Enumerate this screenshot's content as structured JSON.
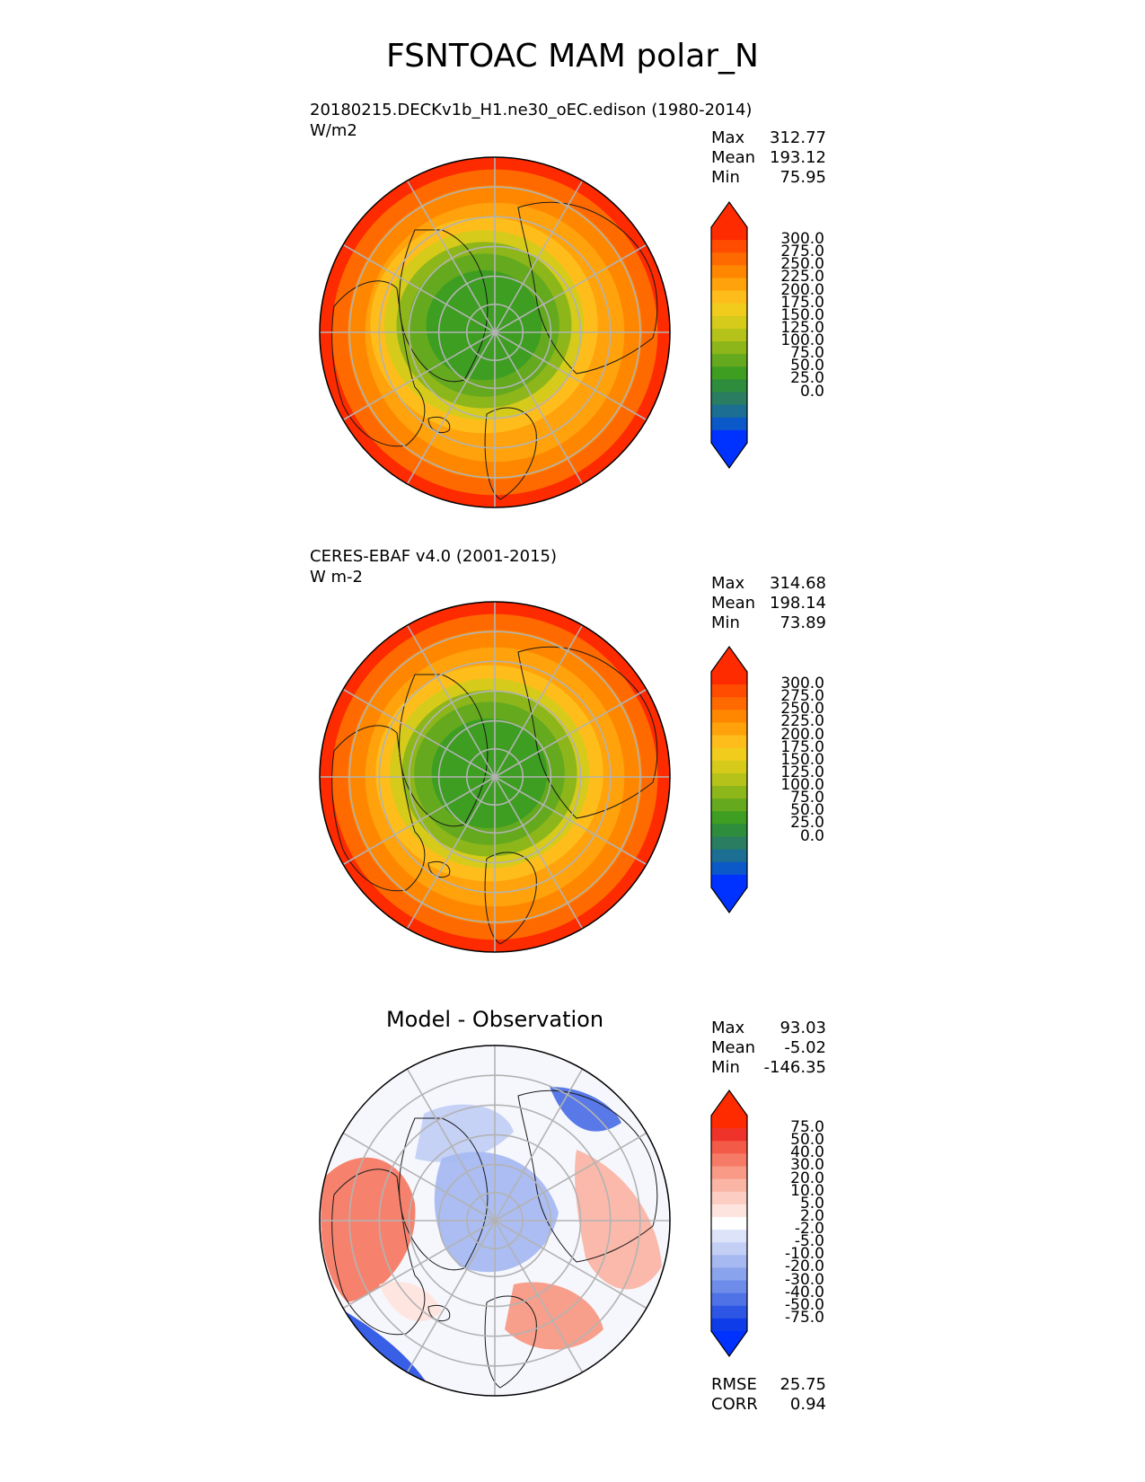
{
  "figure": {
    "title": "FSNTOAC MAM polar_N"
  },
  "panels": [
    {
      "id": "model",
      "title_line1": "20180215.DECKv1b_H1.ne30_oEC.edison (1980-2014)",
      "title_line2": "W/m2",
      "center_title": "",
      "stats": {
        "max_label": "Max",
        "max": "312.77",
        "mean_label": "Mean",
        "mean": "193.12",
        "min_label": "Min",
        "min": "75.95"
      },
      "colorbar": {
        "labels": [
          "300.0",
          "275.0",
          "250.0",
          "225.0",
          "200.0",
          "175.0",
          "150.0",
          "125.0",
          "100.0",
          "75.0",
          "50.0",
          "25.0",
          "0.0"
        ],
        "colors": [
          "#fe2a00",
          "#ff4c00",
          "#ff6a00",
          "#ff8700",
          "#ffa20b",
          "#ffbd1c",
          "#f1cc1c",
          "#d6cb1a",
          "#b5c21a",
          "#8db61b",
          "#64a91e",
          "#3d9e22",
          "#2e8c3d",
          "#2a7d60",
          "#1c6f92",
          "#0b58c8",
          "#0032ff"
        ],
        "tip_top": "#fe2a00",
        "tip_bottom": "#0032ff"
      }
    },
    {
      "id": "obs",
      "title_line1": "CERES-EBAF v4.0 (2001-2015)",
      "title_line2": "W m-2",
      "center_title": "",
      "stats": {
        "max_label": "Max",
        "max": "314.68",
        "mean_label": "Mean",
        "mean": "198.14",
        "min_label": "Min",
        "min": "73.89"
      },
      "colorbar": {
        "labels": [
          "300.0",
          "275.0",
          "250.0",
          "225.0",
          "200.0",
          "175.0",
          "150.0",
          "125.0",
          "100.0",
          "75.0",
          "50.0",
          "25.0",
          "0.0"
        ],
        "colors": [
          "#fe2a00",
          "#ff4c00",
          "#ff6a00",
          "#ff8700",
          "#ffa20b",
          "#ffbd1c",
          "#f1cc1c",
          "#d6cb1a",
          "#b5c21a",
          "#8db61b",
          "#64a91e",
          "#3d9e22",
          "#2e8c3d",
          "#2a7d60",
          "#1c6f92",
          "#0b58c8",
          "#0032ff"
        ],
        "tip_top": "#fe2a00",
        "tip_bottom": "#0032ff"
      }
    },
    {
      "id": "diff",
      "title_line1": "",
      "title_line2": "",
      "center_title": "Model - Observation",
      "stats": {
        "max_label": "Max",
        "max": "93.03",
        "mean_label": "Mean",
        "mean": "-5.02",
        "min_label": "Min",
        "min": "-146.35"
      },
      "colorbar": {
        "labels": [
          "75.0",
          "50.0",
          "40.0",
          "30.0",
          "20.0",
          "10.0",
          "5.0",
          "2.0",
          "-2.0",
          "-5.0",
          "-10.0",
          "-20.0",
          "-30.0",
          "-40.0",
          "-50.0",
          "-75.0"
        ],
        "colors": [
          "#fe2a00",
          "#f0332a",
          "#f35b48",
          "#f67b66",
          "#f89a86",
          "#fab5a5",
          "#fccdc2",
          "#fee4de",
          "#ffffff",
          "#dde4f9",
          "#c3cff5",
          "#a6b9f1",
          "#8aa3ed",
          "#6e8ce9",
          "#4f72e6",
          "#2d56e5",
          "#0d3ce8"
        ],
        "tip_top": "#fe2a00",
        "tip_bottom": "#0032ff"
      },
      "rmse_label": "RMSE",
      "rmse": "25.75",
      "corr_label": "CORR",
      "corr": "0.94"
    }
  ]
}
